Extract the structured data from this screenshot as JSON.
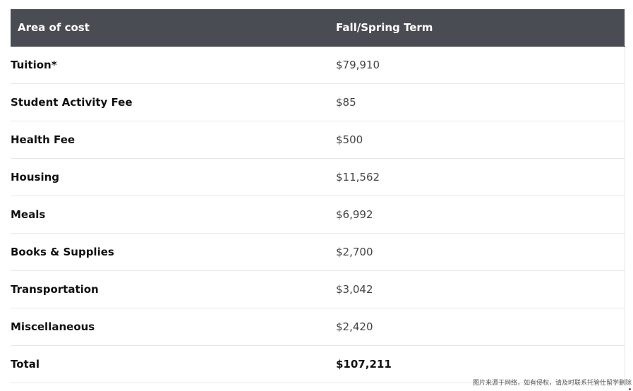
{
  "table": {
    "headers": {
      "area": "Area of cost",
      "term": "Fall/Spring Term"
    },
    "rows": [
      {
        "area": "Tuition*",
        "amount": "$79,910"
      },
      {
        "area": "Student Activity Fee",
        "amount": "$85"
      },
      {
        "area": "Health Fee",
        "amount": "$500"
      },
      {
        "area": "Housing",
        "amount": "$11,562"
      },
      {
        "area": "Meals",
        "amount": "$6,992"
      },
      {
        "area": "Books & Supplies",
        "amount": "$2,700"
      },
      {
        "area": "Transportation",
        "amount": "$3,042"
      },
      {
        "area": "Miscellaneous",
        "amount": "$2,420"
      }
    ],
    "total": {
      "area": "Total",
      "amount": "$107,211"
    }
  },
  "watermark": {
    "text": "图片来源于网络，如有侵权，请及时联系托管仕留学删除"
  },
  "colors": {
    "header_bg": "#494c52",
    "header_text": "#ffffff",
    "row_divider": "#e8e8e8"
  }
}
